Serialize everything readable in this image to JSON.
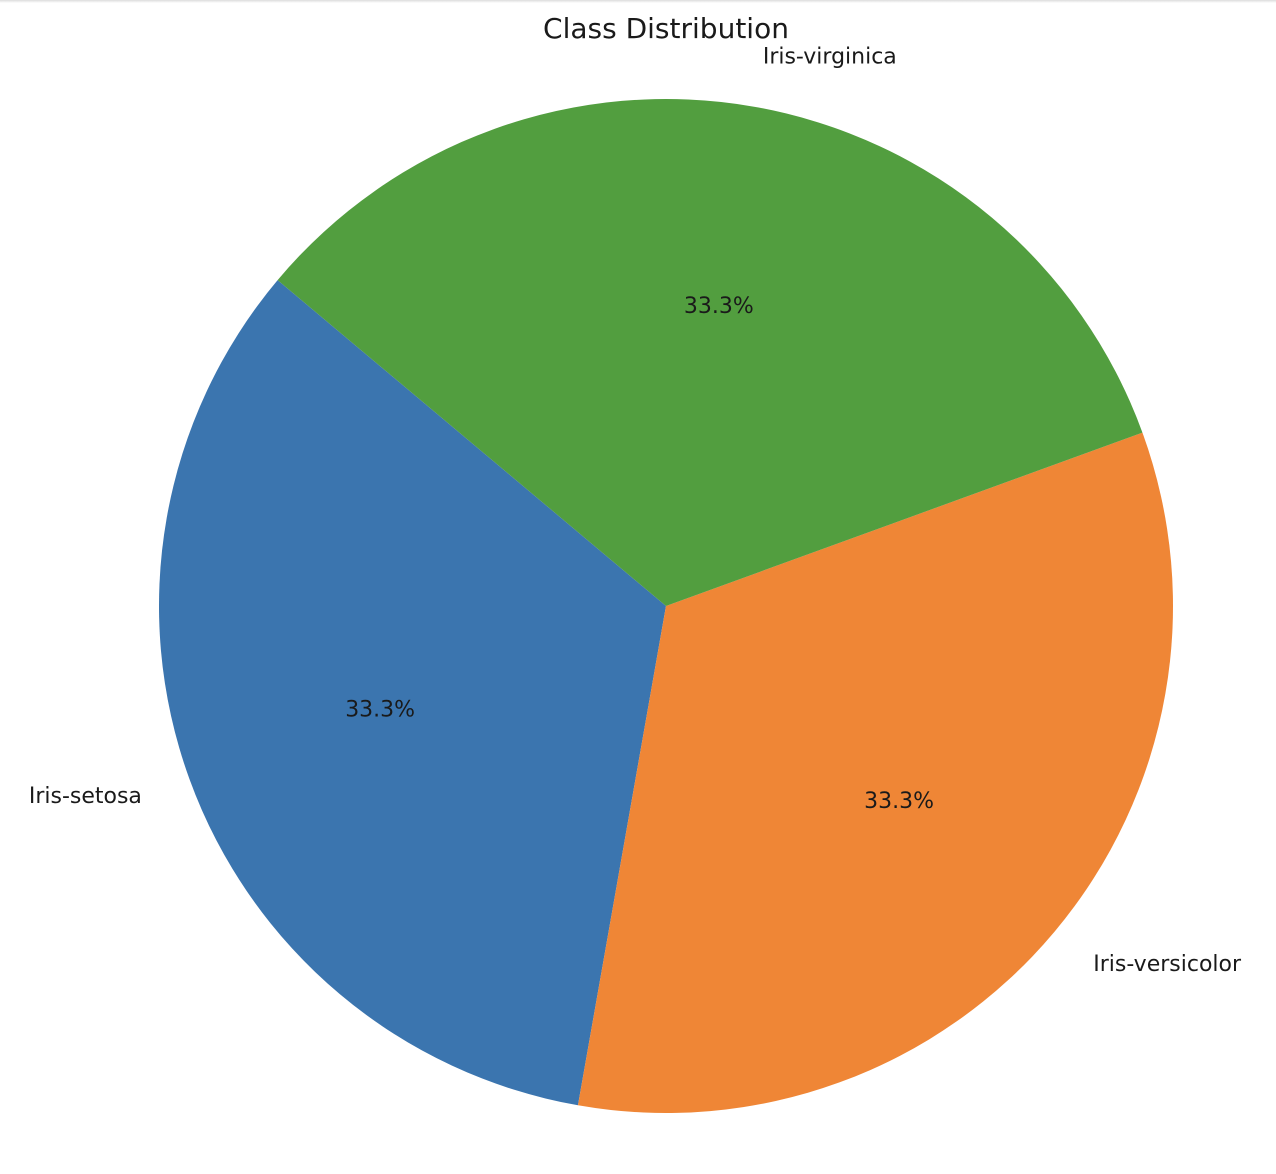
{
  "chart_data": {
    "type": "pie",
    "title": "Class Distribution",
    "slices": [
      {
        "label": "Iris-setosa",
        "value": 50,
        "pct_label": "33.3%",
        "color": "#3b75af"
      },
      {
        "label": "Iris-versicolor",
        "value": 50,
        "pct_label": "33.3%",
        "color": "#ef8636"
      },
      {
        "label": "Iris-virginica",
        "value": 50,
        "pct_label": "33.3%",
        "color": "#529e3f"
      }
    ],
    "start_angle_deg": 140,
    "direction": "counterclockwise",
    "legend": "none"
  }
}
